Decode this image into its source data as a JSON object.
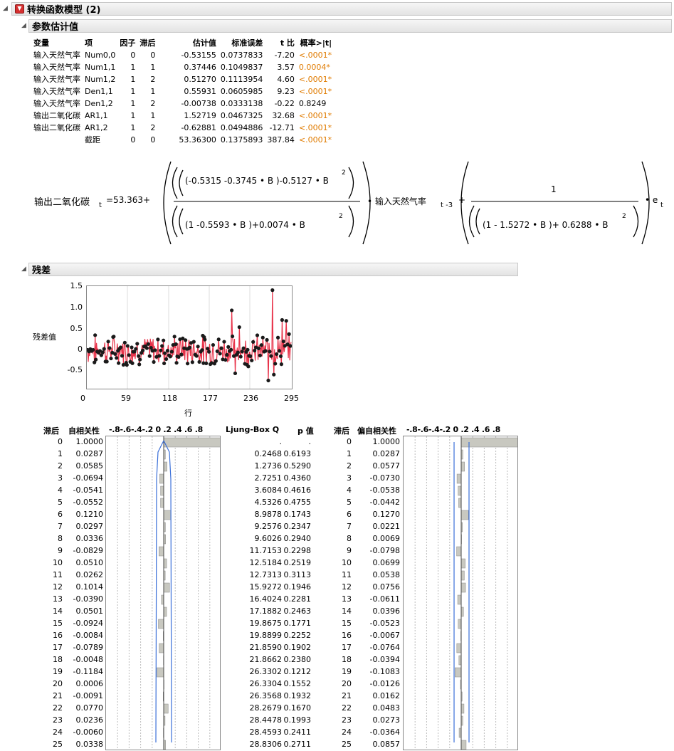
{
  "report": {
    "title": "转换函数模型 (2)",
    "param_section": "参数估计值",
    "resid_section": "残差"
  },
  "params": {
    "headers": [
      "变量",
      "项",
      "因子",
      "滞后",
      "估计值",
      "标准误差",
      "t 比",
      "概率>|t|"
    ],
    "rows": [
      {
        "var": "输入天然气率",
        "term": "Num0,0",
        "factor": "0",
        "lag": "0",
        "est": "-0.53155",
        "se": "0.0737833",
        "t": "-7.20",
        "p": "<.0001*",
        "sig": true
      },
      {
        "var": "输入天然气率",
        "term": "Num1,1",
        "factor": "1",
        "lag": "1",
        "est": "0.37446",
        "se": "0.1049837",
        "t": "3.57",
        "p": "0.0004*",
        "sig": true
      },
      {
        "var": "输入天然气率",
        "term": "Num1,2",
        "factor": "1",
        "lag": "2",
        "est": "0.51270",
        "se": "0.1113954",
        "t": "4.60",
        "p": "<.0001*",
        "sig": true
      },
      {
        "var": "输入天然气率",
        "term": "Den1,1",
        "factor": "1",
        "lag": "1",
        "est": "0.55931",
        "se": "0.0605985",
        "t": "9.23",
        "p": "<.0001*",
        "sig": true
      },
      {
        "var": "输入天然气率",
        "term": "Den1,2",
        "factor": "1",
        "lag": "2",
        "est": "-0.00738",
        "se": "0.0333138",
        "t": "-0.22",
        "p": "0.8249",
        "sig": false
      },
      {
        "var": "输出二氧化碳",
        "term": "AR1,1",
        "factor": "1",
        "lag": "1",
        "est": "1.52719",
        "se": "0.0467325",
        "t": "32.68",
        "p": "<.0001*",
        "sig": true
      },
      {
        "var": "输出二氧化碳",
        "term": "AR1,2",
        "factor": "1",
        "lag": "2",
        "est": "-0.62881",
        "se": "0.0494886",
        "t": "-12.71",
        "p": "<.0001*",
        "sig": true
      },
      {
        "var": "",
        "term": "截距",
        "factor": "0",
        "lag": "0",
        "est": "53.36300",
        "se": "0.1375893",
        "t": "387.84",
        "p": "<.0001*",
        "sig": true
      }
    ]
  },
  "equation": {
    "lhs": "输出二氧化碳",
    "sub_t": "t",
    "intercept": "=53.363",
    "num": "(-0.5315 -0.3745 • B )-0.5127 • B",
    "den": "(1 -0.5593 • B )+0.0074 • B",
    "input": "• 输入天然气率",
    "input_sub": "t -3",
    "one": "1",
    "den2": "(1 - 1.5272 • B )+ 0.6288 • B",
    "sq": "2",
    "err": "• e",
    "plus": "+"
  },
  "resid_plot": {
    "ylabel": "残差值",
    "xlabel": "行",
    "yticks": [
      "1.5",
      "1.0",
      "0.5",
      "0",
      "-0.5"
    ],
    "xticks": [
      "0",
      "59",
      "118",
      "177",
      "236",
      "295"
    ]
  },
  "acf": {
    "headers": {
      "lag": "滞后",
      "ac": "自相关性",
      "axis": "-.8-.6-.4-.2 0 .2 .4 .6 .8",
      "q": "Ljung-Box Q",
      "p": "p 值",
      "lag2": "滞后",
      "pac": "偏自相关性"
    },
    "rows": [
      {
        "lag": "0",
        "ac": "1.0000",
        "q": ".",
        "p": ".",
        "pac": "1.0000",
        "acv": 1.0,
        "pacv": 1.0
      },
      {
        "lag": "1",
        "ac": "0.0287",
        "q": "0.2468",
        "p": "0.6193",
        "pac": "0.0287",
        "acv": 0.0287,
        "pacv": 0.0287
      },
      {
        "lag": "2",
        "ac": "0.0585",
        "q": "1.2736",
        "p": "0.5290",
        "pac": "0.0577",
        "acv": 0.0585,
        "pacv": 0.0577
      },
      {
        "lag": "3",
        "ac": "-0.0694",
        "q": "2.7251",
        "p": "0.4360",
        "pac": "-0.0730",
        "acv": -0.0694,
        "pacv": -0.073
      },
      {
        "lag": "4",
        "ac": "-0.0541",
        "q": "3.6084",
        "p": "0.4616",
        "pac": "-0.0538",
        "acv": -0.0541,
        "pacv": -0.0538
      },
      {
        "lag": "5",
        "ac": "-0.0552",
        "q": "4.5326",
        "p": "0.4755",
        "pac": "-0.0442",
        "acv": -0.0552,
        "pacv": -0.0442
      },
      {
        "lag": "6",
        "ac": "0.1210",
        "q": "8.9878",
        "p": "0.1743",
        "pac": "0.1270",
        "acv": 0.121,
        "pacv": 0.127
      },
      {
        "lag": "7",
        "ac": "0.0297",
        "q": "9.2576",
        "p": "0.2347",
        "pac": "0.0221",
        "acv": 0.0297,
        "pacv": 0.0221
      },
      {
        "lag": "8",
        "ac": "0.0336",
        "q": "9.6026",
        "p": "0.2940",
        "pac": "0.0069",
        "acv": 0.0336,
        "pacv": 0.0069
      },
      {
        "lag": "9",
        "ac": "-0.0829",
        "q": "11.7153",
        "p": "0.2298",
        "pac": "-0.0798",
        "acv": -0.0829,
        "pacv": -0.0798
      },
      {
        "lag": "10",
        "ac": "0.0510",
        "q": "12.5184",
        "p": "0.2519",
        "pac": "0.0699",
        "acv": 0.051,
        "pacv": 0.0699
      },
      {
        "lag": "11",
        "ac": "0.0262",
        "q": "12.7313",
        "p": "0.3113",
        "pac": "0.0538",
        "acv": 0.0262,
        "pacv": 0.0538
      },
      {
        "lag": "12",
        "ac": "0.1014",
        "q": "15.9272",
        "p": "0.1946",
        "pac": "0.0756",
        "acv": 0.1014,
        "pacv": 0.0756
      },
      {
        "lag": "13",
        "ac": "-0.0390",
        "q": "16.4024",
        "p": "0.2281",
        "pac": "-0.0611",
        "acv": -0.039,
        "pacv": -0.0611
      },
      {
        "lag": "14",
        "ac": "0.0501",
        "q": "17.1882",
        "p": "0.2463",
        "pac": "0.0396",
        "acv": 0.0501,
        "pacv": 0.0396
      },
      {
        "lag": "15",
        "ac": "-0.0924",
        "q": "19.8675",
        "p": "0.1771",
        "pac": "-0.0523",
        "acv": -0.0924,
        "pacv": -0.0523
      },
      {
        "lag": "16",
        "ac": "-0.0084",
        "q": "19.8899",
        "p": "0.2252",
        "pac": "-0.0067",
        "acv": -0.0084,
        "pacv": -0.0067
      },
      {
        "lag": "17",
        "ac": "-0.0789",
        "q": "21.8590",
        "p": "0.1902",
        "pac": "-0.0764",
        "acv": -0.0789,
        "pacv": -0.0764
      },
      {
        "lag": "18",
        "ac": "-0.0048",
        "q": "21.8662",
        "p": "0.2380",
        "pac": "-0.0394",
        "acv": -0.0048,
        "pacv": -0.0394
      },
      {
        "lag": "19",
        "ac": "-0.1184",
        "q": "26.3302",
        "p": "0.1212",
        "pac": "-0.1083",
        "acv": -0.1184,
        "pacv": -0.1083
      },
      {
        "lag": "20",
        "ac": "0.0006",
        "q": "26.3304",
        "p": "0.1552",
        "pac": "-0.0126",
        "acv": 0.0006,
        "pacv": -0.0126
      },
      {
        "lag": "21",
        "ac": "-0.0091",
        "q": "26.3568",
        "p": "0.1932",
        "pac": "0.0162",
        "acv": -0.0091,
        "pacv": 0.0162
      },
      {
        "lag": "22",
        "ac": "0.0770",
        "q": "28.2679",
        "p": "0.1670",
        "pac": "0.0483",
        "acv": 0.077,
        "pacv": 0.0483
      },
      {
        "lag": "23",
        "ac": "0.0236",
        "q": "28.4478",
        "p": "0.1993",
        "pac": "0.0273",
        "acv": 0.0236,
        "pacv": 0.0273
      },
      {
        "lag": "24",
        "ac": "-0.0060",
        "q": "28.4593",
        "p": "0.2411",
        "pac": "-0.0364",
        "acv": -0.006,
        "pacv": -0.0364
      },
      {
        "lag": "25",
        "ac": "0.0338",
        "q": "28.8306",
        "p": "0.2711",
        "pac": "0.0857",
        "acv": 0.0338,
        "pacv": 0.0857
      }
    ]
  },
  "colors": {
    "sig": "#e07b00",
    "line": "#e8334a",
    "point": "#1a1a1a",
    "bar": "#c8c8c0",
    "bound": "#3a6fd8"
  }
}
